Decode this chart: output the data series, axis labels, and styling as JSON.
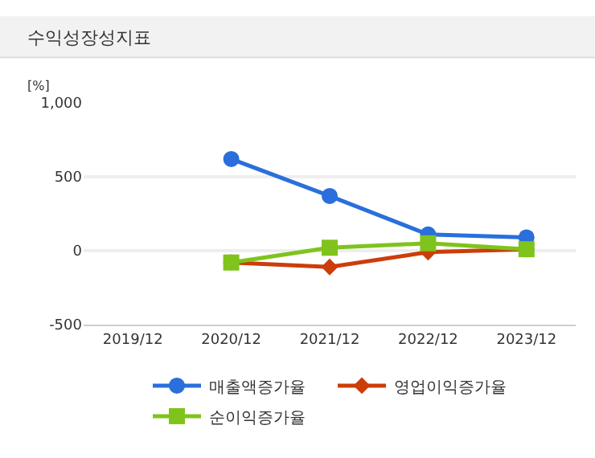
{
  "chart_data": {
    "type": "line",
    "title": "수익성장성지표",
    "ylabel": "[%]",
    "categories": [
      "2019/12",
      "2020/12",
      "2021/12",
      "2022/12",
      "2023/12"
    ],
    "series": [
      {
        "name": "매출액증가율",
        "color": "#2a6fdb",
        "marker": "circle",
        "values": [
          null,
          620,
          370,
          110,
          90
        ]
      },
      {
        "name": "영업이익증가율",
        "color": "#cc3d0a",
        "marker": "diamond",
        "values": [
          null,
          -80,
          -110,
          -10,
          10
        ]
      },
      {
        "name": "순이익증가율",
        "color": "#7fc31c",
        "marker": "square",
        "values": [
          null,
          -80,
          20,
          50,
          10
        ]
      }
    ],
    "ylim": [
      -500,
      1000
    ],
    "yticks": [
      {
        "value": -500,
        "label": "-500"
      },
      {
        "value": 0,
        "label": "0"
      },
      {
        "value": 500,
        "label": "500"
      },
      {
        "value": 1000,
        "label": "1,000"
      }
    ],
    "grid": "y",
    "legend": "bottom"
  }
}
